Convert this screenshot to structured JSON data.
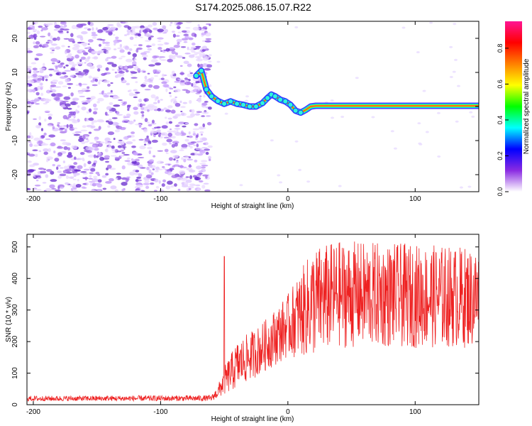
{
  "title": "S174.2025.086.15.07.R22",
  "chart_data": [
    {
      "type": "heatmap",
      "title": "",
      "xlabel": "Height of straight line (km)",
      "ylabel": "Frequency (Hz)",
      "xlim": [
        -205,
        150
      ],
      "ylim": [
        -25,
        25
      ],
      "xticks": [
        -200,
        -100,
        0,
        100
      ],
      "yticks": [
        -20,
        -10,
        0,
        10,
        20
      ],
      "noise_region_x": [
        -205,
        -65
      ],
      "ridge": {
        "x": [
          -72,
          -68,
          -64,
          -60,
          -55,
          -50,
          -45,
          -40,
          -35,
          -30,
          -25,
          -20,
          -16,
          -13,
          -10,
          -6,
          -2,
          2,
          6,
          10,
          14,
          18,
          22,
          40,
          80,
          120,
          150
        ],
        "y": [
          9,
          10.5,
          5,
          3,
          1.6,
          0.8,
          1.5,
          0.8,
          0.5,
          0,
          0,
          1,
          2.5,
          3.5,
          3,
          2,
          1.5,
          0.5,
          -1.2,
          -1.8,
          -1,
          0,
          0.2,
          0.2,
          0.2,
          0.2,
          0.2
        ]
      },
      "colorbar": {
        "label": "Normalized spectral amplitude",
        "range": [
          0,
          0.95
        ],
        "ticks": [
          "0.0",
          "0.2",
          "0.4",
          "0.6",
          "0.8"
        ],
        "colors": [
          "#ffffff",
          "#8a2be2",
          "#0000ff",
          "#00ffff",
          "#00ff00",
          "#ffff00",
          "#ff8000",
          "#ff0000",
          "#ff1493"
        ]
      }
    },
    {
      "type": "line",
      "title": "",
      "xlabel": "Height of straight line (km)",
      "ylabel": "SNR (10 * v/v)",
      "xlim": [
        -205,
        150
      ],
      "ylim": [
        0,
        540
      ],
      "xticks": [
        -200,
        -100,
        0,
        100
      ],
      "yticks": [
        0,
        100,
        200,
        300,
        400,
        500
      ],
      "color": "#ee2222",
      "envelope": {
        "x": [
          -205,
          -60,
          -55,
          -50,
          -40,
          -20,
          0,
          20,
          40,
          150
        ],
        "low": [
          12,
          12,
          20,
          30,
          50,
          100,
          150,
          150,
          180,
          180
        ],
        "high": [
          28,
          30,
          60,
          120,
          200,
          260,
          350,
          500,
          520,
          500
        ]
      },
      "spike": {
        "x": -50,
        "y": 470
      }
    }
  ]
}
